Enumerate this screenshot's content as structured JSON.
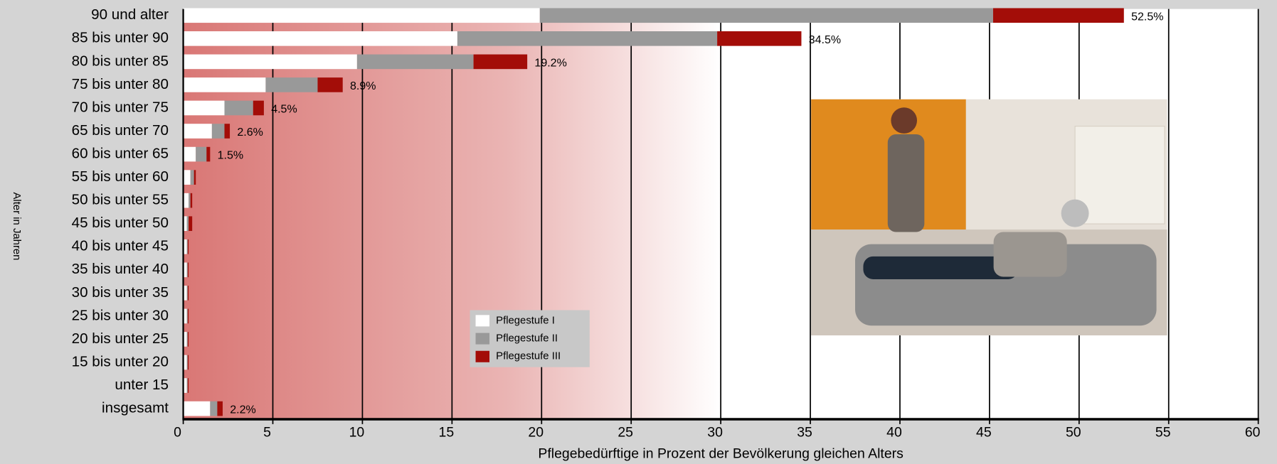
{
  "chart_data": {
    "type": "stacked-barh",
    "xlabel": "Pflegebedürftige in Prozent der Bevölkerung gleichen Alters",
    "ylabel": "Alter in Jahren",
    "categories": [
      "90 und alter",
      "85 bis unter 90",
      "80 bis unter 85",
      "75 bis unter 80",
      "70 bis unter 75",
      "65 bis unter 70",
      "60 bis unter 65",
      "55 bis unter 60",
      "50 bis unter 55",
      "45 bis unter 50",
      "40 bis unter 45",
      "35 bis unter 40",
      "30 bis unter 35",
      "25 bis unter 30",
      "20 bis unter 25",
      "15 bis unter 20",
      "unter 15",
      "insgesamt"
    ],
    "series": [
      {
        "name": "Pflegestufe I",
        "color": "#ffffff",
        "values": [
          19.9,
          15.3,
          9.7,
          4.6,
          2.3,
          1.6,
          0.7,
          0.4,
          0.3,
          0.2,
          0.2,
          0.2,
          0.2,
          0.2,
          0.2,
          0.2,
          0.2,
          1.5
        ]
      },
      {
        "name": "Pflegestufe II",
        "color": "#999999",
        "values": [
          25.3,
          14.5,
          6.5,
          2.9,
          1.6,
          0.7,
          0.6,
          0.2,
          0.1,
          0.1,
          0.05,
          0.05,
          0.05,
          0.05,
          0.05,
          0.05,
          0.05,
          0.4
        ]
      },
      {
        "name": "Pflegestufe III",
        "color": "#a30d08",
        "values": [
          7.3,
          4.7,
          3.0,
          1.4,
          0.6,
          0.3,
          0.2,
          0.1,
          0.1,
          0.2,
          0.05,
          0.05,
          0.05,
          0.05,
          0.05,
          0.05,
          0.05,
          0.3
        ]
      }
    ],
    "total_labels": [
      "52.5%",
      "34.5%",
      "19.2%",
      "8.9%",
      "4.5%",
      "2.6%",
      "1.5%",
      null,
      null,
      null,
      null,
      null,
      null,
      null,
      null,
      null,
      null,
      "2.2%"
    ],
    "xlim": [
      0,
      60
    ],
    "xticks": [
      0,
      5,
      10,
      15,
      20,
      25,
      30,
      35,
      40,
      45,
      50,
      55,
      60
    ],
    "grid": true
  }
}
